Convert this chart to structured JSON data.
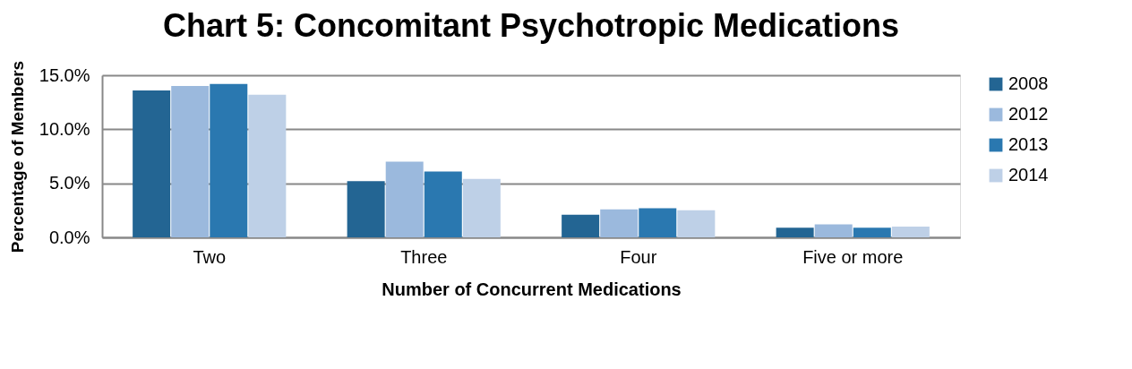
{
  "chart_data": {
    "type": "bar",
    "title": "Chart 5: Concomitant Psychotropic Medications",
    "xlabel": "Number of Concurrent Medications",
    "ylabel": "Percentage of Members",
    "categories": [
      "Two",
      "Three",
      "Four",
      "Five or more"
    ],
    "series": [
      {
        "name": "2008",
        "color": "#236593",
        "values": [
          13.6,
          5.2,
          2.1,
          0.9
        ]
      },
      {
        "name": "2012",
        "color": "#9bb9dd",
        "values": [
          14.0,
          7.0,
          2.6,
          1.2
        ]
      },
      {
        "name": "2013",
        "color": "#2a78b0",
        "values": [
          14.2,
          6.1,
          2.7,
          0.9
        ]
      },
      {
        "name": "2014",
        "color": "#bed0e7",
        "values": [
          13.2,
          5.4,
          2.5,
          1.0
        ]
      }
    ],
    "ylim": [
      0,
      15
    ],
    "yticks": [
      {
        "value": 0,
        "label": "0.0%"
      },
      {
        "value": 5,
        "label": "5.0%"
      },
      {
        "value": 10,
        "label": "10.0%"
      },
      {
        "value": 15,
        "label": "15.0%"
      }
    ],
    "grid": "y",
    "legend": "right"
  }
}
